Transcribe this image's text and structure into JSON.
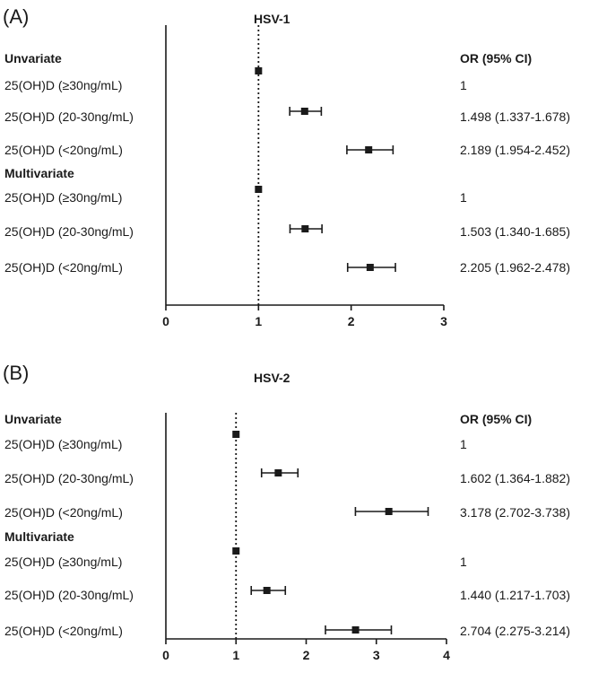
{
  "chart_data": [
    {
      "type": "forest",
      "panel_label": "(A)",
      "title": "HSV-1",
      "or_header": "OR (95% CI)",
      "xlim": [
        0,
        3
      ],
      "ticks": [
        "0",
        "1",
        "2",
        "3"
      ],
      "reference_line": 1,
      "sections": [
        {
          "name": "Unvariate",
          "rows": [
            {
              "label": "25(OH)D (≥30ng/mL)",
              "or_text": "1",
              "or": 1,
              "lo": 1,
              "hi": 1
            },
            {
              "label": "25(OH)D (20-30ng/mL)",
              "or_text": "1.498 (1.337-1.678)",
              "or": 1.498,
              "lo": 1.337,
              "hi": 1.678
            },
            {
              "label": "25(OH)D (<20ng/mL)",
              "or_text": "2.189 (1.954-2.452)",
              "or": 2.189,
              "lo": 1.954,
              "hi": 2.452
            }
          ]
        },
        {
          "name": "Multivariate",
          "rows": [
            {
              "label": "25(OH)D (≥30ng/mL)",
              "or_text": "1",
              "or": 1,
              "lo": 1,
              "hi": 1
            },
            {
              "label": "25(OH)D (20-30ng/mL)",
              "or_text": "1.503 (1.340-1.685)",
              "or": 1.503,
              "lo": 1.34,
              "hi": 1.685
            },
            {
              "label": "25(OH)D (<20ng/mL)",
              "or_text": "2.205 (1.962-2.478)",
              "or": 2.205,
              "lo": 1.962,
              "hi": 2.478
            }
          ]
        }
      ]
    },
    {
      "type": "forest",
      "panel_label": "(B)",
      "title": "HSV-2",
      "or_header": "OR (95% CI)",
      "xlim": [
        0,
        4
      ],
      "ticks": [
        "0",
        "1",
        "2",
        "3",
        "4"
      ],
      "reference_line": 1,
      "sections": [
        {
          "name": "Unvariate",
          "rows": [
            {
              "label": "25(OH)D (≥30ng/mL)",
              "or_text": "1",
              "or": 1,
              "lo": 1,
              "hi": 1
            },
            {
              "label": "25(OH)D (20-30ng/mL)",
              "or_text": "1.602 (1.364-1.882)",
              "or": 1.602,
              "lo": 1.364,
              "hi": 1.882
            },
            {
              "label": "25(OH)D (<20ng/mL)",
              "or_text": "3.178 (2.702-3.738)",
              "or": 3.178,
              "lo": 2.702,
              "hi": 3.738
            }
          ]
        },
        {
          "name": "Multivariate",
          "rows": [
            {
              "label": "25(OH)D (≥30ng/mL)",
              "or_text": "1",
              "or": 1,
              "lo": 1,
              "hi": 1
            },
            {
              "label": "25(OH)D (20-30ng/mL)",
              "or_text": "1.440 (1.217-1.703)",
              "or": 1.44,
              "lo": 1.217,
              "hi": 1.703
            },
            {
              "label": "25(OH)D (<20ng/mL)",
              "or_text": "2.704 (2.275-3.214)",
              "or": 2.704,
              "lo": 2.275,
              "hi": 3.214
            }
          ]
        }
      ]
    }
  ]
}
